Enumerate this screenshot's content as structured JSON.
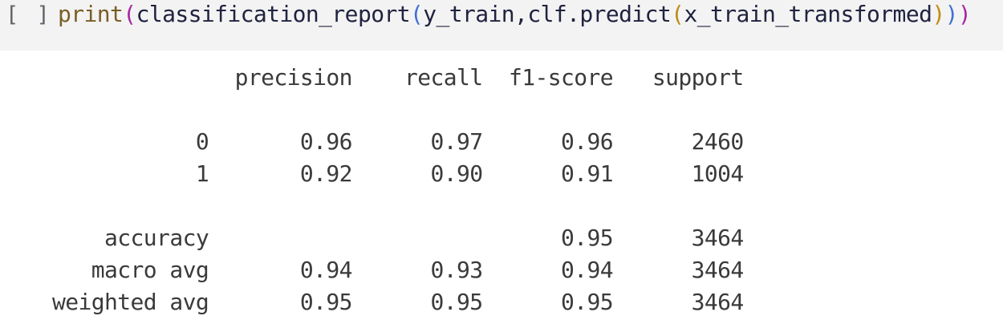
{
  "colors": {
    "cell_background": "#f3f3f3",
    "output_background": "#ffffff",
    "execution_indicator": "#5f6368",
    "output_text": "#3a3a3a",
    "token": {
      "builtin": "#795E26",
      "identifier": "#202340",
      "punctuation": "#202340",
      "paren_level_1": "#a626a4",
      "paren_level_2": "#4070d4",
      "paren_level_3": "#bf8b16"
    }
  },
  "cell": {
    "execution_indicator": "[ ]",
    "code_full_text": "print(classification_report(y_train,clf.predict(x_train_transformed)))",
    "code_tokens": [
      {
        "text": "print",
        "type": "builtin"
      },
      {
        "text": "(",
        "type": "paren_level_1"
      },
      {
        "text": "classification_report",
        "type": "identifier"
      },
      {
        "text": "(",
        "type": "paren_level_2"
      },
      {
        "text": "y_train",
        "type": "identifier"
      },
      {
        "text": ",",
        "type": "punctuation"
      },
      {
        "text": "clf",
        "type": "identifier"
      },
      {
        "text": ".",
        "type": "punctuation"
      },
      {
        "text": "predict",
        "type": "identifier"
      },
      {
        "text": "(",
        "type": "paren_level_3"
      },
      {
        "text": "x_train_transformed",
        "type": "identifier"
      },
      {
        "text": ")",
        "type": "paren_level_3"
      },
      {
        "text": ")",
        "type": "paren_level_2"
      },
      {
        "text": ")",
        "type": "paren_level_1"
      }
    ]
  },
  "output": {
    "report": {
      "columns": [
        "precision",
        "recall",
        "f1-score",
        "support"
      ],
      "class_rows": [
        {
          "label": "0",
          "values": [
            "0.96",
            "0.97",
            "0.96",
            "2460"
          ]
        },
        {
          "label": "1",
          "values": [
            "0.92",
            "0.90",
            "0.91",
            "1004"
          ]
        }
      ],
      "summary_rows": [
        {
          "label": "accuracy",
          "values": [
            "",
            "",
            "0.95",
            "3464"
          ]
        },
        {
          "label": "macro avg",
          "values": [
            "0.94",
            "0.93",
            "0.94",
            "3464"
          ]
        },
        {
          "label": "weighted avg",
          "values": [
            "0.95",
            "0.95",
            "0.95",
            "3464"
          ]
        }
      ]
    }
  }
}
